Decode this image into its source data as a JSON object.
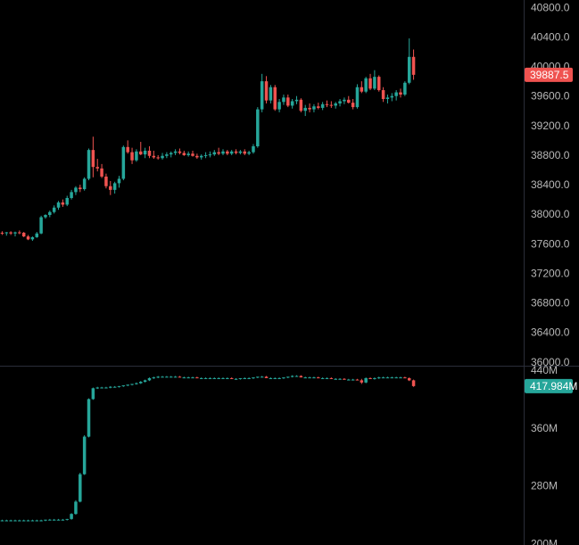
{
  "colors": {
    "background": "#000000",
    "up": "#26a69a",
    "down": "#ef5350",
    "axis_border": "#2a2e39",
    "tick_text": "#b8b8b8",
    "label_text": "#ffffff"
  },
  "chart_data": [
    {
      "type": "candlestick",
      "pane": "price",
      "y_axis_side": "right",
      "ylim": [
        35950,
        40900
      ],
      "y_ticks": [
        "40800.0",
        "40400.0",
        "40000.0",
        "39600.0",
        "39200.0",
        "38800.0",
        "38400.0",
        "38000.0",
        "37600.0",
        "37200.0",
        "36800.0",
        "36400.0",
        "36000.0"
      ],
      "y_tick_values": [
        40800,
        40400,
        40000,
        39600,
        39200,
        38800,
        38400,
        38000,
        37600,
        37200,
        36800,
        36400,
        36000
      ],
      "last_value": 39887.5,
      "last_value_label": "39887.5",
      "last_value_color": "#ef5350",
      "candles": [
        [
          37750,
          37770,
          37720,
          37745
        ],
        [
          37745,
          37760,
          37710,
          37755
        ],
        [
          37755,
          37770,
          37720,
          37740
        ],
        [
          37740,
          37765,
          37700,
          37755
        ],
        [
          37755,
          37780,
          37730,
          37750
        ],
        [
          37750,
          37760,
          37690,
          37700
        ],
        [
          37700,
          37720,
          37650,
          37660
        ],
        [
          37660,
          37700,
          37640,
          37690
        ],
        [
          37690,
          37760,
          37680,
          37740
        ],
        [
          37740,
          37980,
          37730,
          37960
        ],
        [
          37960,
          38000,
          37940,
          37990
        ],
        [
          37990,
          38050,
          37960,
          38030
        ],
        [
          38030,
          38120,
          38010,
          38090
        ],
        [
          38090,
          38180,
          38060,
          38160
        ],
        [
          38160,
          38200,
          38100,
          38130
        ],
        [
          38130,
          38250,
          38110,
          38220
        ],
        [
          38220,
          38330,
          38200,
          38300
        ],
        [
          38300,
          38380,
          38260,
          38360
        ],
        [
          38360,
          38400,
          38300,
          38340
        ],
        [
          38340,
          38500,
          38320,
          38480
        ],
        [
          38480,
          38890,
          38460,
          38870
        ],
        [
          38870,
          39050,
          38500,
          38640
        ],
        [
          38640,
          38750,
          38580,
          38620
        ],
        [
          38620,
          38680,
          38490,
          38510
        ],
        [
          38510,
          38550,
          38350,
          38380
        ],
        [
          38380,
          38450,
          38260,
          38330
        ],
        [
          38330,
          38440,
          38280,
          38420
        ],
        [
          38420,
          38520,
          38360,
          38480
        ],
        [
          38480,
          38930,
          38460,
          38910
        ],
        [
          38910,
          39000,
          38820,
          38840
        ],
        [
          38840,
          38900,
          38680,
          38730
        ],
        [
          38730,
          38880,
          38710,
          38850
        ],
        [
          38850,
          38980,
          38800,
          38810
        ],
        [
          38810,
          38900,
          38760,
          38860
        ],
        [
          38860,
          38920,
          38760,
          38790
        ],
        [
          38790,
          38860,
          38750,
          38770
        ],
        [
          38770,
          38800,
          38740,
          38760
        ],
        [
          38760,
          38830,
          38740,
          38790
        ],
        [
          38790,
          38840,
          38760,
          38810
        ],
        [
          38810,
          38850,
          38770,
          38830
        ],
        [
          38830,
          38880,
          38800,
          38850
        ],
        [
          38850,
          38890,
          38810,
          38830
        ],
        [
          38830,
          38860,
          38790,
          38800
        ],
        [
          38800,
          38850,
          38780,
          38820
        ],
        [
          38820,
          38860,
          38780,
          38790
        ],
        [
          38790,
          38820,
          38750,
          38770
        ],
        [
          38770,
          38810,
          38740,
          38790
        ],
        [
          38790,
          38840,
          38760,
          38800
        ],
        [
          38800,
          38850,
          38770,
          38810
        ],
        [
          38810,
          38870,
          38790,
          38840
        ],
        [
          38840,
          38900,
          38800,
          38820
        ],
        [
          38820,
          38880,
          38800,
          38850
        ],
        [
          38850,
          38870,
          38800,
          38820
        ],
        [
          38820,
          38870,
          38800,
          38850
        ],
        [
          38850,
          38880,
          38810,
          38830
        ],
        [
          38830,
          38870,
          38810,
          38850
        ],
        [
          38850,
          38880,
          38800,
          38820
        ],
        [
          38820,
          38860,
          38800,
          38840
        ],
        [
          38840,
          38950,
          38820,
          38920
        ],
        [
          38920,
          39450,
          38900,
          39420
        ],
        [
          39420,
          39900,
          39380,
          39800
        ],
        [
          39800,
          39870,
          39500,
          39540
        ],
        [
          39540,
          39750,
          39500,
          39720
        ],
        [
          39720,
          39750,
          39400,
          39420
        ],
        [
          39420,
          39560,
          39380,
          39520
        ],
        [
          39520,
          39620,
          39480,
          39580
        ],
        [
          39580,
          39620,
          39450,
          39470
        ],
        [
          39470,
          39560,
          39430,
          39530
        ],
        [
          39530,
          39600,
          39490,
          39550
        ],
        [
          39550,
          39570,
          39380,
          39400
        ],
        [
          39400,
          39480,
          39330,
          39440
        ],
        [
          39440,
          39500,
          39380,
          39420
        ],
        [
          39420,
          39490,
          39380,
          39460
        ],
        [
          39460,
          39510,
          39420,
          39440
        ],
        [
          39440,
          39520,
          39410,
          39490
        ],
        [
          39490,
          39540,
          39450,
          39480
        ],
        [
          39480,
          39530,
          39440,
          39470
        ],
        [
          39470,
          39520,
          39430,
          39500
        ],
        [
          39500,
          39560,
          39460,
          39530
        ],
        [
          39530,
          39580,
          39490,
          39550
        ],
        [
          39550,
          39600,
          39500,
          39510
        ],
        [
          39510,
          39560,
          39420,
          39450
        ],
        [
          39450,
          39760,
          39430,
          39720
        ],
        [
          39720,
          39800,
          39640,
          39660
        ],
        [
          39660,
          39860,
          39640,
          39840
        ],
        [
          39840,
          39900,
          39680,
          39700
        ],
        [
          39700,
          39950,
          39680,
          39860
        ],
        [
          39860,
          39880,
          39660,
          39680
        ],
        [
          39680,
          39720,
          39520,
          39560
        ],
        [
          39560,
          39620,
          39500,
          39580
        ],
        [
          39580,
          39640,
          39530,
          39600
        ],
        [
          39600,
          39680,
          39540,
          39650
        ],
        [
          39650,
          39700,
          39580,
          39620
        ],
        [
          39620,
          39800,
          39600,
          39780
        ],
        [
          39780,
          40380,
          39760,
          40130
        ],
        [
          40130,
          40230,
          39820,
          39887.5
        ]
      ]
    },
    {
      "type": "candlestick",
      "pane": "indicator",
      "y_axis_side": "right",
      "ylim": [
        198,
        445
      ],
      "y_ticks": [
        "440M",
        "360M",
        "280M",
        "200M"
      ],
      "y_tick_values": [
        440,
        360,
        280,
        200
      ],
      "last_value": 417.984,
      "last_value_label": "417.984M",
      "last_value_color": "#26a69a",
      "candles": [
        [
          232,
          233,
          231,
          232
        ],
        [
          232,
          233,
          231,
          232
        ],
        [
          232,
          233,
          231,
          232
        ],
        [
          232,
          233,
          231,
          232
        ],
        [
          232,
          233,
          231,
          232
        ],
        [
          232,
          233,
          231,
          232
        ],
        [
          232,
          233,
          231,
          232
        ],
        [
          232,
          233,
          231,
          232
        ],
        [
          232,
          233,
          231,
          232
        ],
        [
          232,
          233,
          231,
          232
        ],
        [
          232,
          233,
          231,
          233
        ],
        [
          233,
          234,
          232,
          233
        ],
        [
          233,
          234,
          232,
          233
        ],
        [
          233,
          234,
          232,
          233
        ],
        [
          233,
          234,
          232,
          233
        ],
        [
          233,
          234,
          232,
          234
        ],
        [
          234,
          242,
          233,
          241
        ],
        [
          241,
          260,
          240,
          258
        ],
        [
          258,
          298,
          257,
          296
        ],
        [
          296,
          350,
          295,
          348
        ],
        [
          348,
          401,
          347,
          400
        ],
        [
          400,
          416,
          399,
          415
        ],
        [
          415,
          417,
          414,
          416
        ],
        [
          416,
          417,
          415,
          416
        ],
        [
          416,
          417,
          415,
          416
        ],
        [
          416,
          418,
          415,
          417
        ],
        [
          417,
          418,
          416,
          417
        ],
        [
          417,
          418,
          416,
          418
        ],
        [
          418,
          419,
          417,
          419
        ],
        [
          419,
          420,
          418,
          420
        ],
        [
          420,
          421,
          419,
          421
        ],
        [
          421,
          423,
          420,
          422
        ],
        [
          422,
          425,
          421,
          424
        ],
        [
          424,
          427,
          423,
          426
        ],
        [
          426,
          430,
          425,
          429
        ],
        [
          429,
          431,
          428,
          430
        ],
        [
          430,
          432,
          429,
          431
        ],
        [
          431,
          432,
          430,
          431
        ],
        [
          431,
          432,
          430,
          431
        ],
        [
          431,
          432,
          430,
          431
        ],
        [
          431,
          432,
          430,
          431
        ],
        [
          431,
          432,
          430,
          430
        ],
        [
          430,
          431,
          429,
          430
        ],
        [
          430,
          431,
          429,
          430
        ],
        [
          430,
          431,
          429,
          430
        ],
        [
          430,
          431,
          429,
          429
        ],
        [
          429,
          430,
          428,
          429
        ],
        [
          429,
          430,
          428,
          429
        ],
        [
          429,
          430,
          428,
          429
        ],
        [
          429,
          430,
          428,
          429
        ],
        [
          429,
          430,
          428,
          429
        ],
        [
          429,
          430,
          428,
          429
        ],
        [
          429,
          430,
          428,
          429
        ],
        [
          429,
          430,
          428,
          428
        ],
        [
          428,
          429,
          427,
          428
        ],
        [
          428,
          429,
          427,
          429
        ],
        [
          429,
          430,
          428,
          429
        ],
        [
          429,
          430,
          428,
          429
        ],
        [
          429,
          430,
          428,
          430
        ],
        [
          430,
          431,
          429,
          431
        ],
        [
          431,
          432,
          430,
          431
        ],
        [
          431,
          432,
          430,
          429
        ],
        [
          429,
          430,
          428,
          429
        ],
        [
          429,
          430,
          428,
          429
        ],
        [
          429,
          430,
          428,
          429
        ],
        [
          429,
          430,
          428,
          430
        ],
        [
          430,
          431,
          429,
          431
        ],
        [
          431,
          433,
          430,
          432
        ],
        [
          432,
          433,
          431,
          432
        ],
        [
          432,
          433,
          431,
          430
        ],
        [
          430,
          431,
          429,
          430
        ],
        [
          430,
          431,
          429,
          430
        ],
        [
          430,
          431,
          429,
          430
        ],
        [
          430,
          431,
          429,
          429
        ],
        [
          429,
          430,
          428,
          429
        ],
        [
          429,
          430,
          428,
          429
        ],
        [
          429,
          430,
          428,
          428
        ],
        [
          428,
          429,
          427,
          428
        ],
        [
          428,
          429,
          427,
          428
        ],
        [
          428,
          429,
          427,
          427
        ],
        [
          427,
          428,
          426,
          427
        ],
        [
          427,
          428,
          426,
          427
        ],
        [
          427,
          428,
          426,
          426
        ],
        [
          426,
          428,
          421,
          423
        ],
        [
          423,
          430,
          422,
          429
        ],
        [
          429,
          430,
          428,
          428
        ],
        [
          428,
          430,
          427,
          429
        ],
        [
          429,
          431,
          428,
          430
        ],
        [
          430,
          431,
          429,
          430
        ],
        [
          430,
          431,
          429,
          430
        ],
        [
          430,
          431,
          429,
          430
        ],
        [
          430,
          431,
          429,
          430
        ],
        [
          430,
          431,
          429,
          430
        ],
        [
          430,
          431,
          429,
          429
        ],
        [
          429,
          430,
          425,
          426
        ],
        [
          426,
          427,
          417,
          418
        ]
      ]
    }
  ]
}
